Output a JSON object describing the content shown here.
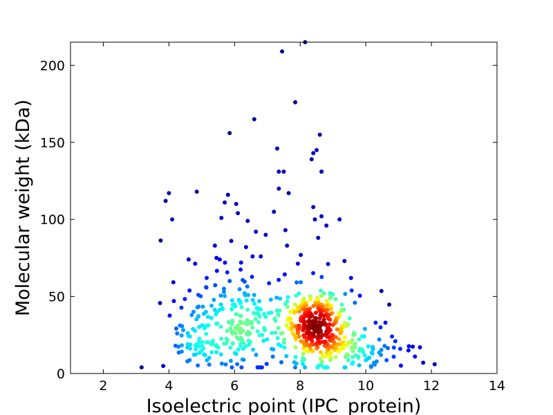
{
  "chart_data": {
    "type": "scatter",
    "title": "",
    "xlabel": "Isoelectric point (IPC_protein)",
    "ylabel": "Molecular weight (kDa)",
    "xlim": [
      1,
      14
    ],
    "ylim": [
      0,
      215
    ],
    "xticks": [
      2,
      4,
      6,
      8,
      10,
      12,
      14
    ],
    "yticks": [
      0,
      50,
      100,
      150,
      200
    ],
    "grid": false,
    "legend": "none",
    "color_encoding": "point density (jet colormap: blue = low, red = high)",
    "colormap": [
      "#00008f",
      "#0000ff",
      "#0080ff",
      "#00ffff",
      "#80ff80",
      "#ffff00",
      "#ff8000",
      "#ff0000",
      "#800000"
    ],
    "sparse_points": [
      [
        3.9,
        112
      ],
      [
        4.0,
        117
      ],
      [
        4.1,
        100
      ],
      [
        4.15,
        47
      ],
      [
        4.2,
        18
      ],
      [
        4.25,
        26
      ],
      [
        4.6,
        74
      ],
      [
        4.75,
        40
      ],
      [
        4.85,
        118
      ],
      [
        4.9,
        37
      ],
      [
        5.15,
        62
      ],
      [
        5.3,
        44
      ],
      [
        5.4,
        83
      ],
      [
        5.45,
        75
      ],
      [
        5.55,
        74
      ],
      [
        5.6,
        101
      ],
      [
        5.7,
        111
      ],
      [
        5.8,
        116
      ],
      [
        5.85,
        156
      ],
      [
        5.9,
        86
      ],
      [
        6.05,
        110
      ],
      [
        6.1,
        104
      ],
      [
        6.2,
        72
      ],
      [
        6.35,
        82
      ],
      [
        6.4,
        99
      ],
      [
        6.55,
        76
      ],
      [
        6.6,
        165
      ],
      [
        6.65,
        92
      ],
      [
        6.8,
        76
      ],
      [
        6.95,
        90
      ],
      [
        7.2,
        105
      ],
      [
        7.3,
        146
      ],
      [
        7.35,
        131
      ],
      [
        7.35,
        120
      ],
      [
        7.45,
        209
      ],
      [
        7.5,
        131
      ],
      [
        7.55,
        93
      ],
      [
        7.6,
        83
      ],
      [
        7.65,
        117
      ],
      [
        7.85,
        176
      ],
      [
        8.15,
        215
      ],
      [
        8.35,
        139
      ],
      [
        8.4,
        143
      ],
      [
        8.4,
        108
      ],
      [
        8.45,
        100
      ],
      [
        8.5,
        145
      ],
      [
        8.55,
        88
      ],
      [
        8.6,
        155
      ],
      [
        8.65,
        131
      ],
      [
        8.65,
        102
      ],
      [
        8.8,
        96
      ],
      [
        8.85,
        71
      ],
      [
        9.2,
        100
      ],
      [
        9.35,
        73
      ],
      [
        9.55,
        62
      ],
      [
        10.3,
        33
      ],
      [
        10.45,
        30
      ],
      [
        10.6,
        33
      ],
      [
        10.8,
        24
      ],
      [
        10.9,
        21
      ],
      [
        11.05,
        16
      ],
      [
        11.3,
        15
      ],
      [
        11.5,
        11
      ],
      [
        11.65,
        17
      ],
      [
        11.75,
        7
      ],
      [
        12.1,
        6
      ]
    ],
    "clusters": [
      {
        "center_x": 8.5,
        "center_y": 31,
        "spread_x": 0.45,
        "spread_y": 11,
        "count": 300
      },
      {
        "center_x": 6.0,
        "center_y": 30,
        "spread_x": 0.75,
        "spread_y": 13,
        "count": 170
      },
      {
        "center_x": 7.5,
        "center_y": 28,
        "spread_x": 1.6,
        "spread_y": 18,
        "count": 110
      },
      {
        "center_x": 9.7,
        "center_y": 16,
        "spread_x": 0.7,
        "spread_y": 7,
        "count": 60
      },
      {
        "center_x": 5.0,
        "center_y": 16,
        "spread_x": 0.4,
        "spread_y": 5,
        "count": 28
      }
    ]
  }
}
